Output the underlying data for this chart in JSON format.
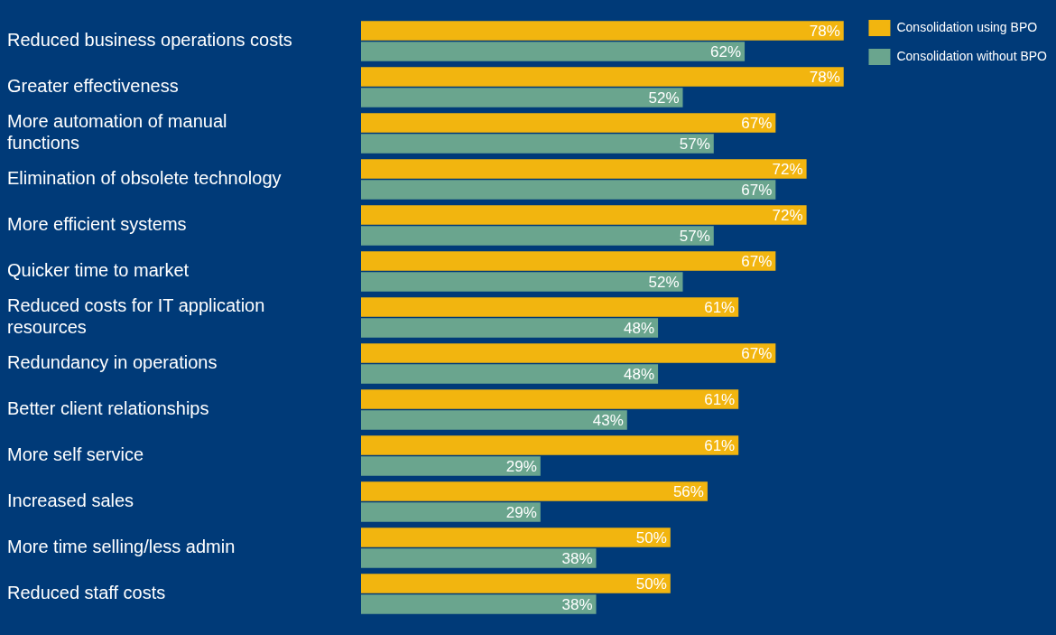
{
  "chart_data": {
    "type": "bar",
    "orientation": "horizontal",
    "legend": "top right",
    "categories": [
      "Reduced business operations costs",
      "Greater effectiveness",
      "More automation of manual functions",
      "Elimination of obsolete technology",
      "More efficient systems",
      "Quicker time to market",
      "Reduced costs for IT application resources",
      "Redundancy in operations",
      "Better client relationships",
      "More self service",
      "Increased sales",
      "More time selling/less admin",
      "Reduced staff costs"
    ],
    "series": [
      {
        "name": "Consolidation using BPO",
        "color": "#f2b50f",
        "values": [
          78,
          78,
          67,
          72,
          72,
          67,
          61,
          67,
          61,
          61,
          56,
          50,
          50
        ],
        "value_labels": [
          "78%",
          "78%",
          "67%",
          "72%",
          "72%",
          "67%",
          "61%",
          "67%",
          "61%",
          "61%",
          "56%",
          "50%",
          "50%"
        ]
      },
      {
        "name": "Consolidation without BPO",
        "color": "#6aa58e",
        "values": [
          62,
          52,
          57,
          67,
          57,
          52,
          48,
          48,
          43,
          29,
          29,
          38,
          38
        ],
        "value_labels": [
          "62%",
          "52%",
          "57%",
          "67%",
          "57%",
          "52%",
          "48%",
          "48%",
          "43%",
          "29%",
          "29%",
          "38%",
          "38%"
        ]
      }
    ]
  }
}
